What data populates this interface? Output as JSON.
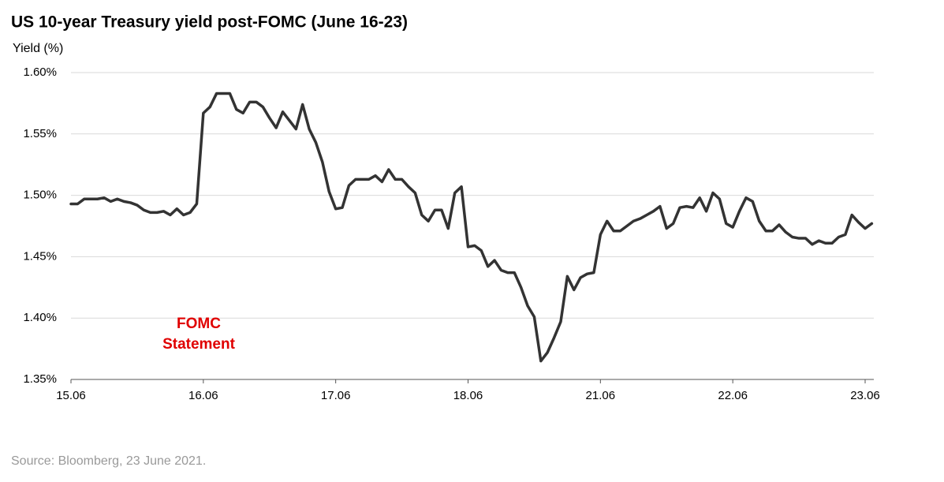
{
  "chart_data": {
    "type": "line",
    "title": "US 10-year Treasury yield post-FOMC (June 16-23)",
    "y_label": "Yield (%)",
    "source": "Source: Bloomberg, 23 June 2021.",
    "annotation": "FOMC Statement",
    "annotation_color": "#e00000",
    "color": "#333333",
    "grid": true,
    "ylim": [
      1.35,
      1.6
    ],
    "yticks": [
      {
        "value": 1.35,
        "label": "1.35%"
      },
      {
        "value": 1.4,
        "label": "1.40%"
      },
      {
        "value": 1.45,
        "label": "1.45%"
      },
      {
        "value": 1.5,
        "label": "1.50%"
      },
      {
        "value": 1.55,
        "label": "1.55%"
      },
      {
        "value": 1.6,
        "label": "1.60%"
      }
    ],
    "categories": [
      "15.06",
      null,
      null,
      null,
      null,
      null,
      null,
      null,
      null,
      null,
      null,
      null,
      null,
      null,
      null,
      null,
      null,
      null,
      null,
      null,
      "16.06",
      null,
      null,
      null,
      null,
      null,
      null,
      null,
      null,
      null,
      null,
      null,
      null,
      null,
      null,
      null,
      null,
      null,
      null,
      null,
      "17.06",
      null,
      null,
      null,
      null,
      null,
      null,
      null,
      null,
      null,
      null,
      null,
      null,
      null,
      null,
      null,
      null,
      null,
      null,
      null,
      "18.06",
      null,
      null,
      null,
      null,
      null,
      null,
      null,
      null,
      null,
      null,
      null,
      null,
      null,
      null,
      null,
      null,
      null,
      null,
      null,
      "21.06",
      null,
      null,
      null,
      null,
      null,
      null,
      null,
      null,
      null,
      null,
      null,
      null,
      null,
      null,
      null,
      null,
      null,
      null,
      null,
      "22.06",
      null,
      null,
      null,
      null,
      null,
      null,
      null,
      null,
      null,
      null,
      null,
      null,
      null,
      null,
      null,
      null,
      null,
      null,
      null,
      "23.06",
      null
    ],
    "values": [
      1.493,
      1.493,
      1.497,
      1.497,
      1.497,
      1.498,
      1.495,
      1.497,
      1.495,
      1.494,
      1.492,
      1.488,
      1.486,
      1.486,
      1.487,
      1.484,
      1.489,
      1.484,
      1.486,
      1.493,
      1.567,
      1.572,
      1.583,
      1.583,
      1.583,
      1.57,
      1.567,
      1.576,
      1.576,
      1.572,
      1.563,
      1.555,
      1.568,
      1.561,
      1.554,
      1.574,
      1.554,
      1.543,
      1.527,
      1.503,
      1.489,
      1.49,
      1.508,
      1.513,
      1.513,
      1.513,
      1.516,
      1.511,
      1.521,
      1.513,
      1.513,
      1.507,
      1.502,
      1.484,
      1.479,
      1.488,
      1.488,
      1.473,
      1.502,
      1.507,
      1.458,
      1.459,
      1.455,
      1.442,
      1.447,
      1.439,
      1.437,
      1.437,
      1.425,
      1.41,
      1.401,
      1.365,
      1.372,
      1.384,
      1.397,
      1.434,
      1.423,
      1.433,
      1.436,
      1.437,
      1.468,
      1.479,
      1.471,
      1.471,
      1.475,
      1.479,
      1.481,
      1.484,
      1.487,
      1.491,
      1.473,
      1.477,
      1.49,
      1.491,
      1.49,
      1.498,
      1.487,
      1.502,
      1.497,
      1.477,
      1.474,
      1.487,
      1.498,
      1.495,
      1.479,
      1.471,
      1.471,
      1.476,
      1.47,
      1.466,
      1.465,
      1.465,
      1.46,
      1.463,
      1.461,
      1.461,
      1.466,
      1.468,
      1.484,
      1.478,
      1.473,
      1.477
    ]
  }
}
